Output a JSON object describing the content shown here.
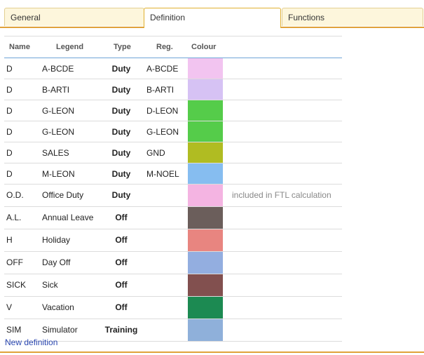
{
  "tabs": [
    {
      "label": "General"
    },
    {
      "label": "Definition"
    },
    {
      "label": "Functions"
    }
  ],
  "table": {
    "headers": {
      "name": "Name",
      "legend": "Legend",
      "type": "Type",
      "reg": "Reg.",
      "colour": "Colour"
    },
    "rows": [
      {
        "name": "D",
        "legend": "A-BCDE",
        "type": "Duty",
        "reg": "A-BCDE",
        "colour": "#f2c4f0",
        "note": ""
      },
      {
        "name": "D",
        "legend": "B-ARTI",
        "type": "Duty",
        "reg": "B-ARTI",
        "colour": "#d6c2f4",
        "note": ""
      },
      {
        "name": "D",
        "legend": "G-LEON",
        "type": "Duty",
        "reg": "D-LEON",
        "colour": "#55cc4a",
        "note": ""
      },
      {
        "name": "D",
        "legend": "G-LEON",
        "type": "Duty",
        "reg": "G-LEON",
        "colour": "#55cc4a",
        "note": ""
      },
      {
        "name": "D",
        "legend": "SALES",
        "type": "Duty",
        "reg": "GND",
        "colour": "#b0bc22",
        "note": ""
      },
      {
        "name": "D",
        "legend": "M-LEON",
        "type": "Duty",
        "reg": "M-NOEL",
        "colour": "#86bdf0",
        "note": ""
      },
      {
        "name": "O.D.",
        "legend": "Office Duty",
        "type": "Duty",
        "reg": "",
        "colour": "#f4b4e2",
        "note": "included in FTL calculation"
      },
      {
        "name": "A.L.",
        "legend": "Annual Leave",
        "type": "Off",
        "reg": "",
        "colour": "#6b5e5b",
        "note": ""
      },
      {
        "name": "H",
        "legend": "Holiday",
        "type": "Off",
        "reg": "",
        "colour": "#e88580",
        "note": ""
      },
      {
        "name": "OFF",
        "legend": "Day Off",
        "type": "Off",
        "reg": "",
        "colour": "#93aee0",
        "note": ""
      },
      {
        "name": "SICK",
        "legend": "Sick",
        "type": "Off",
        "reg": "",
        "colour": "#82504f",
        "note": ""
      },
      {
        "name": "V",
        "legend": "Vacation",
        "type": "Off",
        "reg": "",
        "colour": "#1c8a52",
        "note": ""
      },
      {
        "name": "SIM",
        "legend": "Simulator",
        "type": "Training",
        "reg": "",
        "colour": "#8fb0da",
        "note": ""
      }
    ]
  },
  "new_definition_label": "New definition",
  "colors": {
    "accent": "#e0a23a",
    "header_border": "#6fa5d8",
    "link": "#2a47b0"
  }
}
